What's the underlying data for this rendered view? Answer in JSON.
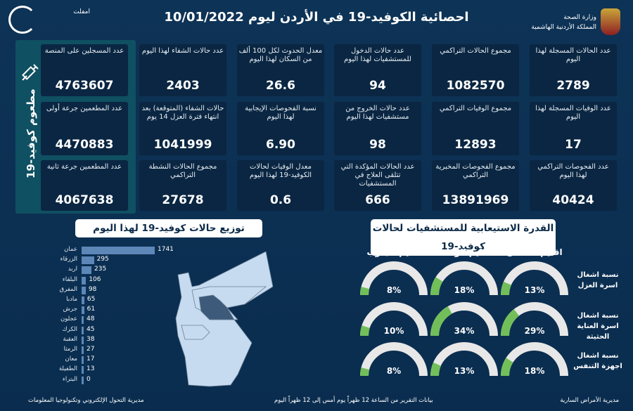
{
  "header": {
    "title": "احصائية الكوفيد-19 في الأردن ليوم  10/01/2022",
    "ministry_line1": "وزارة الصحة",
    "ministry_line2": "المملكة الأردنية الهاشمية",
    "logo_name": "امفلت"
  },
  "vaccine": {
    "label": "مطعوم كوفيد-19",
    "cards": [
      {
        "label": "عدد المسجلين على المنصة",
        "value": "4763607"
      },
      {
        "label": "عدد المطعمين جرعة أولى",
        "value": "4470883"
      },
      {
        "label": "عدد المطعمين جرعة ثانية",
        "value": "4067638"
      }
    ]
  },
  "stats": [
    [
      {
        "label": "عدد الحالات المسجلة لهذا اليوم",
        "value": "2789"
      },
      {
        "label": "مجموع الحالات التراكمي",
        "value": "1082570"
      },
      {
        "label": "عدد حالات الدخول للمستشفيات لهذا اليوم",
        "value": "94"
      },
      {
        "label": "معدل الحدوث لكل 100 ألف من السكان لهذا اليوم",
        "value": "26.6"
      },
      {
        "label": "عدد حالات الشفاء لهذا اليوم",
        "value": "2403"
      }
    ],
    [
      {
        "label": "عدد الوفيات المسجلة لهذا اليوم",
        "value": "17"
      },
      {
        "label": "مجموع الوفيات التراكمي",
        "value": "12893"
      },
      {
        "label": "عدد حالات الخروج من مستشفيات لهذا اليوم",
        "value": "98"
      },
      {
        "label": "نسبة الفحوصات الإيجابية لهذا اليوم",
        "value": "6.90"
      },
      {
        "label": "حالات الشفاء (المتوقعة) بعد انتهاء فترة العزل 14 يوم",
        "value": "1041999"
      }
    ],
    [
      {
        "label": "عدد الفحوصات التراكمي لهذا اليوم",
        "value": "40424"
      },
      {
        "label": "مجموع الفحوصات المخبرية التراكمي",
        "value": "13891969"
      },
      {
        "label": "عدد الحالات المؤكدة التي تتلقى العلاج في المستشفيات",
        "value": "666"
      },
      {
        "label": "معدل الوفيات لحالات الكوفيد-19 لهذا اليوم",
        "value": "0.6"
      },
      {
        "label": "مجموع الحالات النشطة التراكمي",
        "value": "27678"
      }
    ]
  ],
  "distribution": {
    "title": "توزيع حالات كوفيد-19 لهذا اليوم",
    "bar_color": "#5c87b7",
    "items": [
      {
        "name": "عمان",
        "value": 1741
      },
      {
        "name": "الزرقاء",
        "value": 295
      },
      {
        "name": "اربد",
        "value": 235
      },
      {
        "name": "البلقاء",
        "value": 106
      },
      {
        "name": "المفرق",
        "value": 98
      },
      {
        "name": "مادبا",
        "value": 65
      },
      {
        "name": "جرش",
        "value": 61
      },
      {
        "name": "عجلون",
        "value": 48
      },
      {
        "name": "الكرك",
        "value": 45
      },
      {
        "name": "العقبة",
        "value": 38
      },
      {
        "name": "الرمثا",
        "value": 27
      },
      {
        "name": "معان",
        "value": 17
      },
      {
        "name": "الطفيلة",
        "value": 13
      },
      {
        "name": "البتراء",
        "value": 0
      }
    ]
  },
  "capacity": {
    "title": "القدرة الاستيعابية للمستشفيات لحالات كوفيد-19",
    "fill_color": "#72bf5a",
    "track_color": "#e8e8e8",
    "regions": [
      "اقليم الشمال",
      "اقليم الوسط",
      "اقليم الجنوب"
    ],
    "rows": [
      {
        "label": "نسبة اشغال اسرة العزل",
        "values": [
          13,
          18,
          8
        ]
      },
      {
        "label": "نسبة اشغال اسرة العناية الحثيثة",
        "values": [
          29,
          34,
          10
        ]
      },
      {
        "label": "نسبة اشغال اجهزة التنفس",
        "values": [
          18,
          13,
          8
        ]
      }
    ]
  },
  "footer": {
    "right": "مديرية الأمراض السارية",
    "center": "بيانات التقرير من الساعة 12 ظهراً يوم أمس إلى 12 ظهراً اليوم",
    "left": "مديرية التحول الإلكتروني وتكنولوجيا المعلومات"
  }
}
